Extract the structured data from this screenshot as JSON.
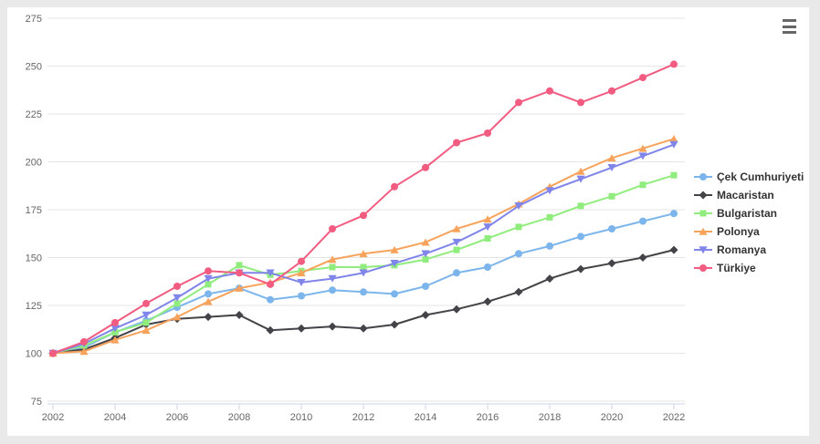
{
  "chart_data": {
    "type": "line",
    "x": [
      2002,
      2003,
      2004,
      2005,
      2006,
      2007,
      2008,
      2009,
      2010,
      2011,
      2012,
      2013,
      2014,
      2015,
      2016,
      2017,
      2018,
      2019,
      2020,
      2021,
      2022
    ],
    "series": [
      {
        "name": "Çek Cumhuriyeti",
        "color": "#7cb5ec",
        "marker": "circle",
        "values": [
          100,
          103,
          111,
          117,
          124,
          131,
          134,
          128,
          130,
          133,
          132,
          131,
          135,
          142,
          145,
          152,
          156,
          161,
          165,
          169,
          173
        ]
      },
      {
        "name": "Macaristan",
        "color": "#434348",
        "marker": "diamond",
        "values": [
          100,
          102,
          108,
          115,
          118,
          119,
          120,
          112,
          113,
          114,
          113,
          115,
          120,
          123,
          127,
          132,
          139,
          144,
          147,
          150,
          154
        ]
      },
      {
        "name": "Bulgaristan",
        "color": "#90ed7d",
        "marker": "square",
        "values": [
          100,
          104,
          111,
          116,
          126,
          136,
          146,
          141,
          143,
          145,
          145,
          146,
          149,
          154,
          160,
          166,
          171,
          177,
          182,
          188,
          193
        ]
      },
      {
        "name": "Polonya",
        "color": "#f7a35c",
        "marker": "triangle",
        "values": [
          100,
          101,
          107,
          112,
          119,
          127,
          134,
          137,
          142,
          149,
          152,
          154,
          158,
          165,
          170,
          178,
          187,
          195,
          202,
          207,
          212
        ]
      },
      {
        "name": "Romanya",
        "color": "#8085e9",
        "marker": "triangle-down",
        "values": [
          100,
          105,
          113,
          120,
          129,
          139,
          142,
          142,
          137,
          139,
          142,
          147,
          152,
          158,
          166,
          177,
          185,
          191,
          197,
          203,
          209
        ]
      },
      {
        "name": "Türkiye",
        "color": "#f15c80",
        "marker": "circle",
        "values": [
          100,
          106,
          116,
          126,
          135,
          143,
          142,
          136,
          148,
          165,
          172,
          187,
          197,
          210,
          215,
          231,
          237,
          231,
          237,
          244,
          251
        ]
      }
    ],
    "title": "",
    "xlabel": "",
    "ylabel": "",
    "ylim": [
      75,
      275
    ],
    "yticks": [
      75,
      100,
      125,
      150,
      175,
      200,
      225,
      250,
      275
    ],
    "xticks": [
      2002,
      2004,
      2006,
      2008,
      2010,
      2012,
      2014,
      2016,
      2018,
      2020,
      2022
    ],
    "grid": "horizontal",
    "legend_position": "right"
  },
  "legend": {
    "items": [
      "Çek Cumhuriyeti",
      "Macaristan",
      "Bulgaristan",
      "Polonya",
      "Romanya",
      "Türkiye"
    ]
  },
  "toolbar": {
    "menu_icon": "hamburger-menu"
  },
  "colors": {
    "grid": "#e6e6e6",
    "axis_line": "#ccd6eb",
    "tick": "#ccd6eb",
    "axis_label": "#666666",
    "legend_text": "#333333",
    "chart_background": "#ffffff",
    "page_background": "#e9e9e9"
  }
}
